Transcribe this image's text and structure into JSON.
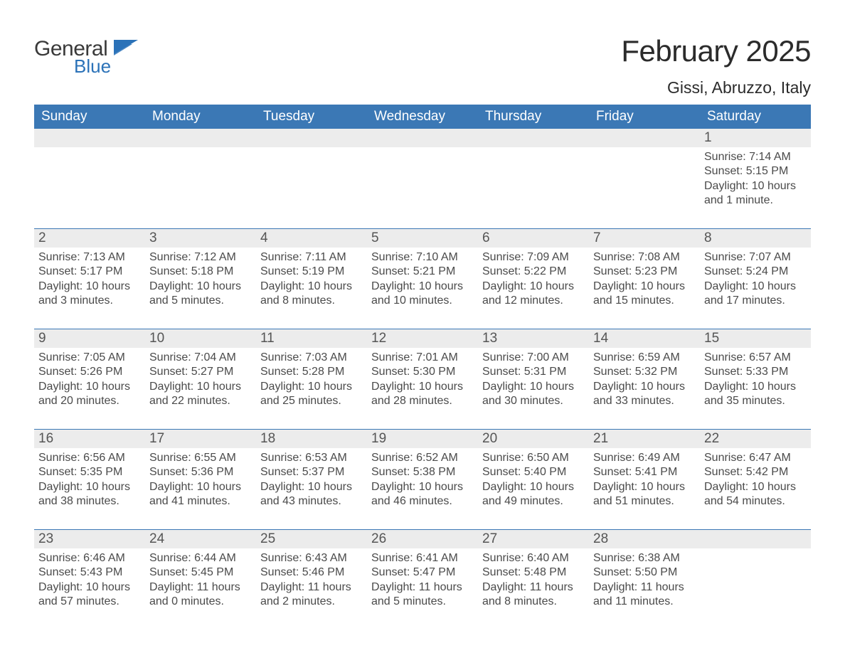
{
  "colors": {
    "header_blue": "#3b78b5",
    "accent_blue": "#2b72b8",
    "row_separator": "#3b78b5",
    "text_dark": "#333333",
    "text_muted": "#4a4a4a",
    "daynum_bg": "#ececec",
    "page_bg": "#ffffff",
    "white": "#ffffff"
  },
  "typography": {
    "title_fontsize_pt": 32,
    "location_fontsize_pt": 17,
    "header_fontsize_pt": 14,
    "daynum_fontsize_pt": 14,
    "detail_fontsize_pt": 12,
    "font_family": "Arial"
  },
  "logo": {
    "line1": "General",
    "line2": "Blue",
    "icon": "flag"
  },
  "title": "February 2025",
  "location": "Gissi, Abruzzo, Italy",
  "weekdays": [
    "Sunday",
    "Monday",
    "Tuesday",
    "Wednesday",
    "Thursday",
    "Friday",
    "Saturday"
  ],
  "calendar": {
    "type": "table",
    "columns": 7,
    "rows": 5,
    "start_weekday_index": 6,
    "days": [
      {
        "n": 1,
        "sunrise": "7:14 AM",
        "sunset": "5:15 PM",
        "daylight": "10 hours and 1 minute."
      },
      {
        "n": 2,
        "sunrise": "7:13 AM",
        "sunset": "5:17 PM",
        "daylight": "10 hours and 3 minutes."
      },
      {
        "n": 3,
        "sunrise": "7:12 AM",
        "sunset": "5:18 PM",
        "daylight": "10 hours and 5 minutes."
      },
      {
        "n": 4,
        "sunrise": "7:11 AM",
        "sunset": "5:19 PM",
        "daylight": "10 hours and 8 minutes."
      },
      {
        "n": 5,
        "sunrise": "7:10 AM",
        "sunset": "5:21 PM",
        "daylight": "10 hours and 10 minutes."
      },
      {
        "n": 6,
        "sunrise": "7:09 AM",
        "sunset": "5:22 PM",
        "daylight": "10 hours and 12 minutes."
      },
      {
        "n": 7,
        "sunrise": "7:08 AM",
        "sunset": "5:23 PM",
        "daylight": "10 hours and 15 minutes."
      },
      {
        "n": 8,
        "sunrise": "7:07 AM",
        "sunset": "5:24 PM",
        "daylight": "10 hours and 17 minutes."
      },
      {
        "n": 9,
        "sunrise": "7:05 AM",
        "sunset": "5:26 PM",
        "daylight": "10 hours and 20 minutes."
      },
      {
        "n": 10,
        "sunrise": "7:04 AM",
        "sunset": "5:27 PM",
        "daylight": "10 hours and 22 minutes."
      },
      {
        "n": 11,
        "sunrise": "7:03 AM",
        "sunset": "5:28 PM",
        "daylight": "10 hours and 25 minutes."
      },
      {
        "n": 12,
        "sunrise": "7:01 AM",
        "sunset": "5:30 PM",
        "daylight": "10 hours and 28 minutes."
      },
      {
        "n": 13,
        "sunrise": "7:00 AM",
        "sunset": "5:31 PM",
        "daylight": "10 hours and 30 minutes."
      },
      {
        "n": 14,
        "sunrise": "6:59 AM",
        "sunset": "5:32 PM",
        "daylight": "10 hours and 33 minutes."
      },
      {
        "n": 15,
        "sunrise": "6:57 AM",
        "sunset": "5:33 PM",
        "daylight": "10 hours and 35 minutes."
      },
      {
        "n": 16,
        "sunrise": "6:56 AM",
        "sunset": "5:35 PM",
        "daylight": "10 hours and 38 minutes."
      },
      {
        "n": 17,
        "sunrise": "6:55 AM",
        "sunset": "5:36 PM",
        "daylight": "10 hours and 41 minutes."
      },
      {
        "n": 18,
        "sunrise": "6:53 AM",
        "sunset": "5:37 PM",
        "daylight": "10 hours and 43 minutes."
      },
      {
        "n": 19,
        "sunrise": "6:52 AM",
        "sunset": "5:38 PM",
        "daylight": "10 hours and 46 minutes."
      },
      {
        "n": 20,
        "sunrise": "6:50 AM",
        "sunset": "5:40 PM",
        "daylight": "10 hours and 49 minutes."
      },
      {
        "n": 21,
        "sunrise": "6:49 AM",
        "sunset": "5:41 PM",
        "daylight": "10 hours and 51 minutes."
      },
      {
        "n": 22,
        "sunrise": "6:47 AM",
        "sunset": "5:42 PM",
        "daylight": "10 hours and 54 minutes."
      },
      {
        "n": 23,
        "sunrise": "6:46 AM",
        "sunset": "5:43 PM",
        "daylight": "10 hours and 57 minutes."
      },
      {
        "n": 24,
        "sunrise": "6:44 AM",
        "sunset": "5:45 PM",
        "daylight": "11 hours and 0 minutes."
      },
      {
        "n": 25,
        "sunrise": "6:43 AM",
        "sunset": "5:46 PM",
        "daylight": "11 hours and 2 minutes."
      },
      {
        "n": 26,
        "sunrise": "6:41 AM",
        "sunset": "5:47 PM",
        "daylight": "11 hours and 5 minutes."
      },
      {
        "n": 27,
        "sunrise": "6:40 AM",
        "sunset": "5:48 PM",
        "daylight": "11 hours and 8 minutes."
      },
      {
        "n": 28,
        "sunrise": "6:38 AM",
        "sunset": "5:50 PM",
        "daylight": "11 hours and 11 minutes."
      }
    ],
    "labels": {
      "sunrise_prefix": "Sunrise: ",
      "sunset_prefix": "Sunset: ",
      "daylight_prefix": "Daylight: "
    }
  }
}
